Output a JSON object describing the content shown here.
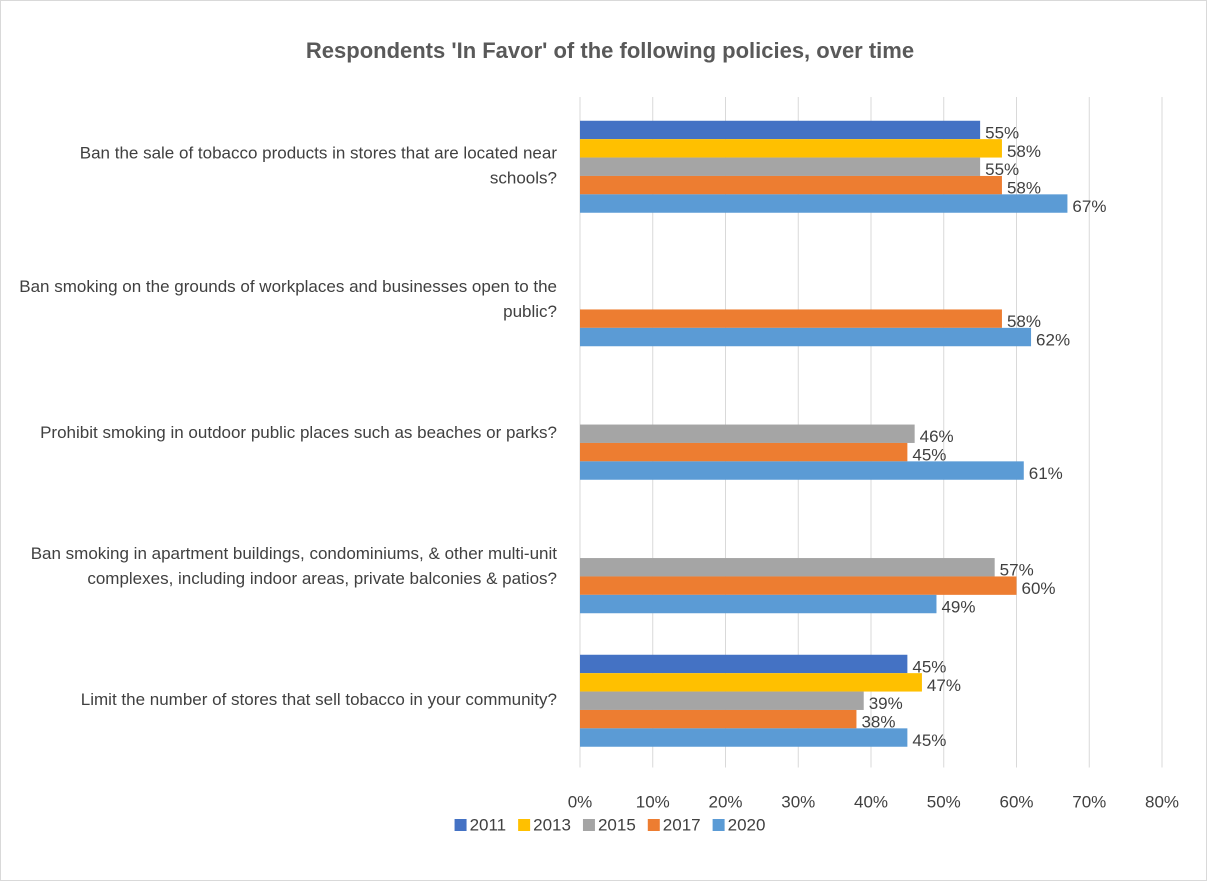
{
  "chart_data": {
    "type": "bar",
    "orientation": "horizontal",
    "title": "Respondents 'In Favor' of the following policies, over time",
    "categories": [
      "Ban the sale of tobacco products in stores that are located near schools?",
      "Ban smoking on the grounds of workplaces and businesses open to the public?",
      "Prohibit smoking in outdoor public places such as beaches or parks?",
      "Ban smoking in apartment buildings, condominiums, & other multi-unit complexes, including indoor areas, private balconies & patios?",
      "Limit the number of stores that sell tobacco in your community?"
    ],
    "series": [
      {
        "name": "2011",
        "color": "#4472c4",
        "values": [
          55,
          null,
          null,
          null,
          45
        ],
        "value_labels": [
          "55%",
          null,
          null,
          null,
          "45%"
        ]
      },
      {
        "name": "2013",
        "color": "#ffc000",
        "values": [
          58,
          null,
          null,
          null,
          47
        ],
        "value_labels": [
          "58%",
          null,
          null,
          null,
          "47%"
        ]
      },
      {
        "name": "2015",
        "color": "#a5a5a5",
        "values": [
          55,
          null,
          46,
          57,
          39
        ],
        "value_labels": [
          "55%",
          null,
          "46%",
          "57%",
          "39%"
        ]
      },
      {
        "name": "2017",
        "color": "#ed7d31",
        "values": [
          58,
          58,
          45,
          60,
          38
        ],
        "value_labels": [
          "58%",
          "58%",
          "45%",
          "60%",
          "38%"
        ]
      },
      {
        "name": "2020",
        "color": "#5b9bd5",
        "values": [
          67,
          62,
          61,
          49,
          45
        ],
        "value_labels": [
          "67%",
          "62%",
          "61%",
          "49%",
          "45%"
        ]
      }
    ],
    "xlim": [
      0,
      80
    ],
    "xticks": [
      {
        "value": 0,
        "label": "0%"
      },
      {
        "value": 10,
        "label": "10%"
      },
      {
        "value": 20,
        "label": "20%"
      },
      {
        "value": 30,
        "label": "30%"
      },
      {
        "value": 40,
        "label": "40%"
      },
      {
        "value": 50,
        "label": "50%"
      },
      {
        "value": 60,
        "label": "60%"
      },
      {
        "value": 70,
        "label": "70%"
      },
      {
        "value": 80,
        "label": "80%"
      }
    ],
    "grid": true,
    "legend": "bottom"
  }
}
